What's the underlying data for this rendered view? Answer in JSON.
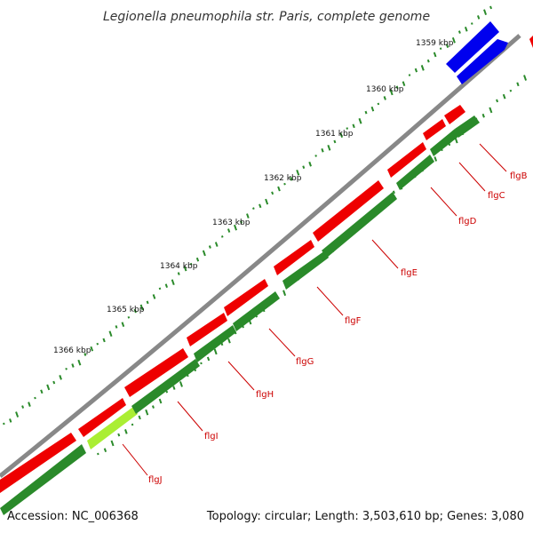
{
  "title": "Legionella pneumophila str. Paris, complete genome",
  "ticks": [
    {
      "label": "1359 kbp"
    },
    {
      "label": "1360 kbp"
    },
    {
      "label": "1361 kbp"
    },
    {
      "label": "1362 kbp"
    },
    {
      "label": "1363 kbp"
    },
    {
      "label": "1364 kbp"
    },
    {
      "label": "1365 kbp"
    },
    {
      "label": "1366 kbp"
    }
  ],
  "genes": [
    {
      "name": "flgB"
    },
    {
      "name": "flgC"
    },
    {
      "name": "flgD"
    },
    {
      "name": "flgE"
    },
    {
      "name": "flgF"
    },
    {
      "name": "flgG"
    },
    {
      "name": "flgH"
    },
    {
      "name": "flgI"
    },
    {
      "name": "flgJ"
    }
  ],
  "colors": {
    "forward_cds": "#ee0000",
    "reverse_cds": "#2a8a2a",
    "highlight": "#aaee33",
    "other_feature": "#0000ee",
    "backbone": "#888888"
  },
  "footer": {
    "accession": "Accession: NC_006368",
    "summary": "Topology: circular; Length: 3,503,610 bp; Genes: 3,080"
  }
}
